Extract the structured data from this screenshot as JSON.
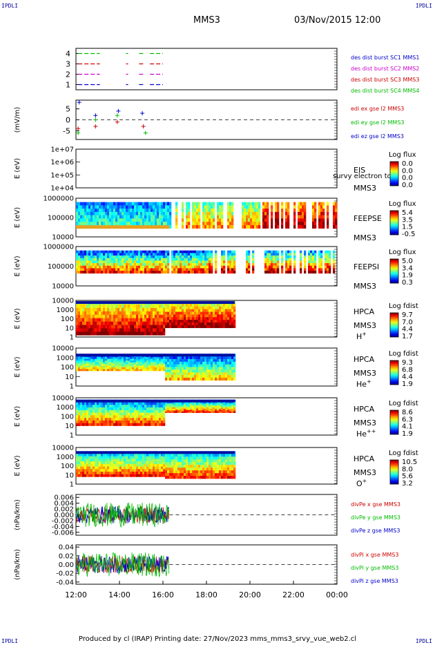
{
  "header": {
    "corner_label": "IPDLI",
    "spacecraft": "MMS3",
    "datetime": "03/Nov/2015 12:00"
  },
  "footer": {
    "text": "Produced by cl (IRAP)   Printing date: 27/Nov/2023   mms_mms3_srvy_vue_web2.cl"
  },
  "chart_data": [
    {
      "type": "bar",
      "panel": "burst",
      "yticks": [
        "1",
        "2",
        "3",
        "4"
      ],
      "ylim": [
        0.5,
        4.5
      ],
      "legend": [
        {
          "label": "des dist burst SC1 MMS1",
          "color": "#0000cc"
        },
        {
          "label": "des dist burst SC2 MMS2",
          "color": "#cc00cc"
        },
        {
          "label": "des dist burst SC3 MMS3",
          "color": "#cc0000"
        },
        {
          "label": "des dist burst SC4 MMS4",
          "color": "#00bb00"
        }
      ],
      "intervals_hours": [
        [
          12.1,
          13.1
        ],
        [
          14.3,
          14.4
        ],
        [
          14.9,
          15.1
        ],
        [
          15.4,
          16.0
        ]
      ]
    },
    {
      "type": "scatter",
      "panel": "edi",
      "ylabel": "(mV/m)",
      "yticks": [
        "5",
        "0",
        "-5"
      ],
      "ylim": [
        -9,
        9
      ],
      "legend": [
        {
          "label": "edi ex gse l2 MMS3",
          "color": "#cc0000"
        },
        {
          "label": "edi ey gse l2 MMS3",
          "color": "#00bb00"
        },
        {
          "label": "edi ez gse l2 MMS3",
          "color": "#0000cc"
        }
      ],
      "series": [
        {
          "name": "edi ex gse l2 MMS3",
          "x": [
            12.1,
            12.9,
            13.9,
            15.1
          ],
          "y": [
            -4,
            -3,
            -1,
            -3
          ]
        },
        {
          "name": "edi ey gse l2 MMS3",
          "x": [
            12.1,
            12.9,
            13.9,
            15.2
          ],
          "y": [
            -6,
            0,
            2,
            -6
          ]
        },
        {
          "name": "edi ez gse l2 MMS3",
          "x": [
            12.15,
            12.9,
            13.95,
            15.05
          ],
          "y": [
            8,
            2,
            4,
            3
          ]
        }
      ]
    },
    {
      "type": "heatmap",
      "panel": "eis",
      "ylabel": "E (eV)",
      "yticks": [
        "1e+07",
        "1e+06",
        "1e+05",
        "1e+04"
      ],
      "name1": "EIS",
      "name2": "MMS3",
      "overlay": "survy electron tof",
      "colorbar_title": "Log flux",
      "colorbar_ticks": [
        "0.0",
        "0.0",
        "0.0",
        "0.0"
      ]
    },
    {
      "type": "heatmap",
      "panel": "feepse",
      "ylabel": "E (eV)",
      "yticks": [
        "1000000",
        "100000",
        "10000"
      ],
      "name1": "FEEPSE",
      "name2": "MMS3",
      "colorbar_title": "Log flux",
      "colorbar_ticks": [
        "5.4",
        "3.5",
        "1.5",
        "-0.5"
      ]
    },
    {
      "type": "heatmap",
      "panel": "feepsi",
      "ylabel": "E (eV)",
      "yticks": [
        "1000000",
        "100000",
        "10000"
      ],
      "name1": "FEEPSI",
      "name2": "MMS3",
      "colorbar_title": "Log flux",
      "colorbar_ticks": [
        "5.0",
        "3.4",
        "1.9",
        "0.3"
      ]
    },
    {
      "type": "heatmap",
      "panel": "hpca_h",
      "ylabel": "E (eV)",
      "yticks": [
        "10000",
        "1000",
        "100",
        "10",
        "1"
      ],
      "name1": "HPCA",
      "name2": "MMS3",
      "species": "H",
      "charge": "+",
      "colorbar_title": "Log fdist",
      "colorbar_ticks": [
        "9.7",
        "7.0",
        "4.4",
        "1.7"
      ]
    },
    {
      "type": "heatmap",
      "panel": "hpca_he",
      "ylabel": "E (eV)",
      "yticks": [
        "10000",
        "1000",
        "100",
        "10",
        "1"
      ],
      "name1": "HPCA",
      "name2": "MMS3",
      "species": "He",
      "charge": "+",
      "colorbar_title": "Log fdist",
      "colorbar_ticks": [
        "9.3",
        "6.8",
        "4.4",
        "1.9"
      ]
    },
    {
      "type": "heatmap",
      "panel": "hpca_he2",
      "ylabel": "E (eV)",
      "yticks": [
        "10000",
        "1000",
        "100",
        "10",
        "1"
      ],
      "name1": "HPCA",
      "name2": "MMS3",
      "species": "He",
      "charge": "++",
      "colorbar_title": "Log fdist",
      "colorbar_ticks": [
        "8.6",
        "6.3",
        "4.1",
        "1.9"
      ]
    },
    {
      "type": "heatmap",
      "panel": "hpca_o",
      "ylabel": "E (eV)",
      "yticks": [
        "10000",
        "1000",
        "100",
        "10",
        "1"
      ],
      "name1": "HPCA",
      "name2": "MMS3",
      "species": "O",
      "charge": "+",
      "colorbar_title": "Log fdist",
      "colorbar_ticks": [
        "10.5",
        "8.0",
        "5.6",
        "3.2"
      ]
    },
    {
      "type": "line",
      "panel": "divpe",
      "ylabel": "(nPa/km)",
      "yticks": [
        "0.006",
        "0.004",
        "0.002",
        "0.000",
        "-0.002",
        "-0.004",
        "-0.006"
      ],
      "ylim": [
        -0.007,
        0.007
      ],
      "legend": [
        {
          "label": "divPe x gse MMS3",
          "color": "#cc0000"
        },
        {
          "label": "divPe y gse MMS3",
          "color": "#00bb00"
        },
        {
          "label": "divPe z gse MMS3",
          "color": "#0000cc"
        }
      ]
    },
    {
      "type": "line",
      "panel": "divpi",
      "ylabel": "(nPa/km)",
      "yticks": [
        "0.04",
        "0.02",
        "0.00",
        "-0.02",
        "-0.04"
      ],
      "ylim": [
        -0.045,
        0.045
      ],
      "legend": [
        {
          "label": "divPi x gse MMS3",
          "color": "#cc0000"
        },
        {
          "label": "divPi y gse MMS3",
          "color": "#00bb00"
        },
        {
          "label": "divPi z gse MMS3",
          "color": "#0000cc"
        }
      ]
    }
  ],
  "xaxis": {
    "range_hours": [
      12,
      24
    ],
    "ticks": [
      "12:00",
      "14:00",
      "16:00",
      "18:00",
      "20:00",
      "22:00",
      "00:00"
    ]
  }
}
